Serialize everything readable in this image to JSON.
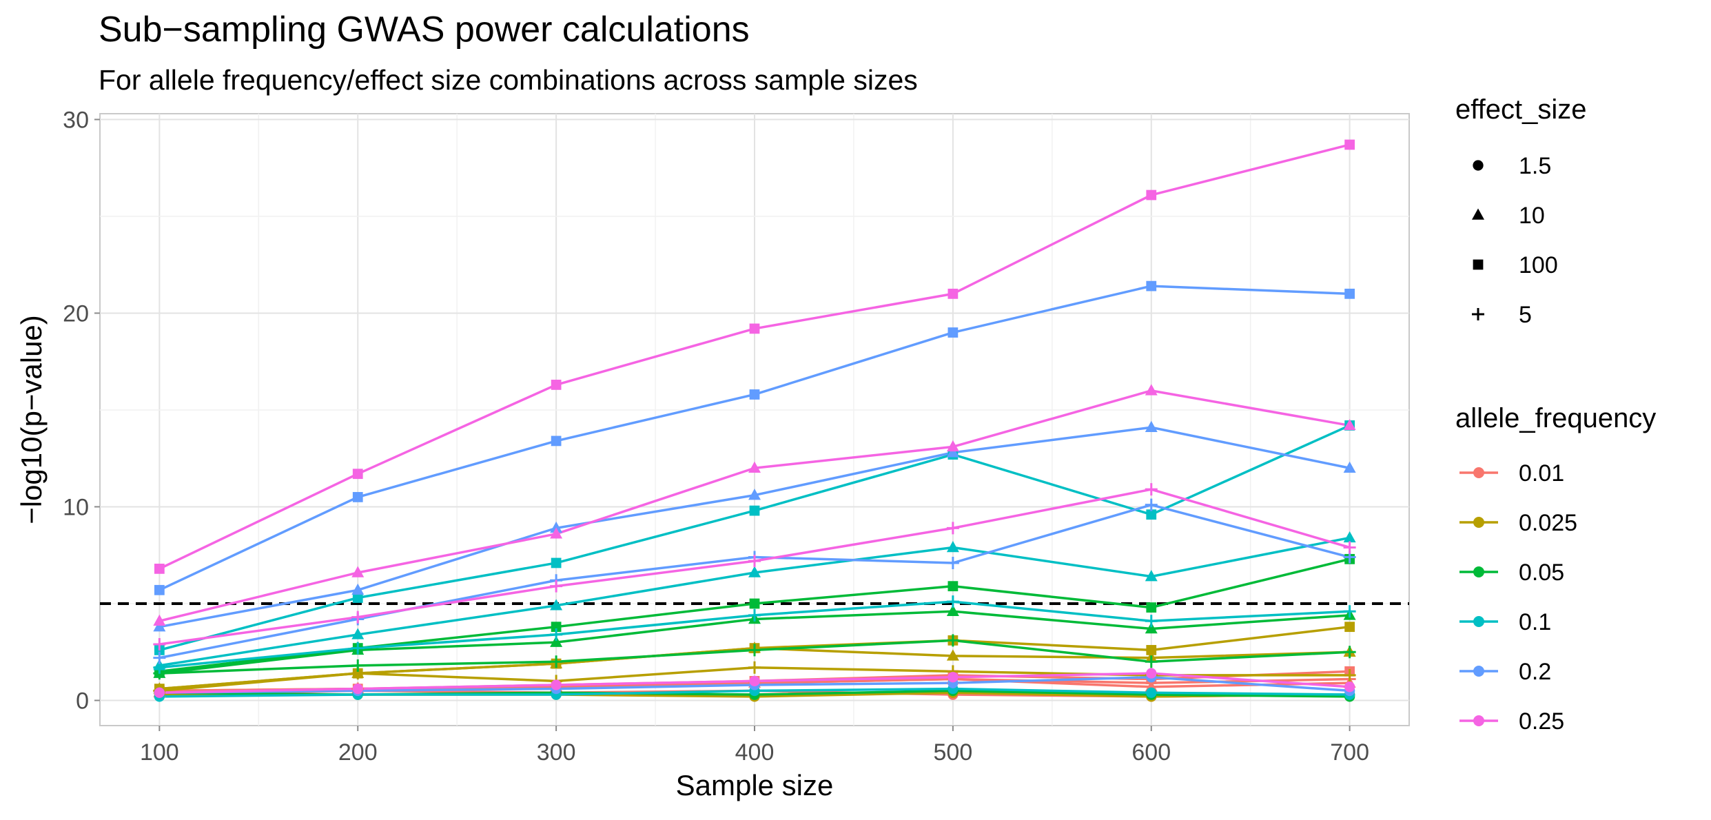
{
  "chart_data": {
    "type": "line",
    "title": "Sub−sampling GWAS power calculations",
    "subtitle": "For allele frequency/effect size combinations across sample sizes",
    "xlabel": "Sample size",
    "ylabel": "−log10(p−value)",
    "x": [
      100,
      200,
      300,
      400,
      500,
      600,
      700
    ],
    "x_ticks": [
      "100",
      "200",
      "300",
      "400",
      "500",
      "600",
      "700"
    ],
    "y_ticks": [
      "0",
      "10",
      "20",
      "30"
    ],
    "xlim": [
      70,
      730
    ],
    "ylim": [
      -1.3,
      30.3
    ],
    "grid": true,
    "threshold_line": {
      "y": 5,
      "style": "dashed",
      "color": "#000000"
    },
    "legend_placement": "right",
    "legend_shape": {
      "title": "effect_size",
      "entries": [
        {
          "label": "1.5",
          "shape": "circle"
        },
        {
          "label": "10",
          "shape": "triangle"
        },
        {
          "label": "100",
          "shape": "square"
        },
        {
          "label": "5",
          "shape": "plus"
        }
      ]
    },
    "legend_color": {
      "title": "allele_frequency",
      "entries": [
        {
          "label": "0.01",
          "color": "#F8766D"
        },
        {
          "label": "0.025",
          "color": "#B79F00"
        },
        {
          "label": "0.05",
          "color": "#00BA38"
        },
        {
          "label": "0.1",
          "color": "#00BFC4"
        },
        {
          "label": "0.2",
          "color": "#619CFF"
        },
        {
          "label": "0.25",
          "color": "#F564E3"
        }
      ]
    },
    "series": [
      {
        "allele_frequency": "0.01",
        "effect_size": "1.5",
        "color": "#F8766D",
        "shape": "circle",
        "values": [
          0.3,
          0.5,
          0.4,
          0.5,
          0.3,
          0.2,
          0.3
        ]
      },
      {
        "allele_frequency": "0.01",
        "effect_size": "10",
        "color": "#F8766D",
        "shape": "triangle",
        "values": [
          0.4,
          0.6,
          0.7,
          0.9,
          1.1,
          0.7,
          0.9
        ]
      },
      {
        "allele_frequency": "0.01",
        "effect_size": "100",
        "color": "#F8766D",
        "shape": "square",
        "values": [
          0.5,
          0.6,
          0.8,
          1.0,
          1.3,
          1.1,
          1.5
        ]
      },
      {
        "allele_frequency": "0.01",
        "effect_size": "5",
        "color": "#F8766D",
        "shape": "plus",
        "values": [
          0.5,
          0.6,
          0.7,
          0.9,
          1.1,
          0.9,
          1.1
        ]
      },
      {
        "allele_frequency": "0.025",
        "effect_size": "1.5",
        "color": "#B79F00",
        "shape": "circle",
        "values": [
          0.3,
          0.3,
          0.3,
          0.2,
          0.4,
          0.2,
          0.3
        ]
      },
      {
        "allele_frequency": "0.025",
        "effect_size": "10",
        "color": "#B79F00",
        "shape": "triangle",
        "values": [
          0.6,
          1.4,
          1.9,
          2.7,
          2.3,
          2.2,
          2.5
        ]
      },
      {
        "allele_frequency": "0.025",
        "effect_size": "100",
        "color": "#B79F00",
        "shape": "square",
        "values": [
          0.6,
          1.4,
          1.9,
          2.7,
          3.1,
          2.6,
          3.8
        ]
      },
      {
        "allele_frequency": "0.025",
        "effect_size": "5",
        "color": "#B79F00",
        "shape": "plus",
        "values": [
          0.5,
          1.4,
          1.0,
          1.7,
          1.5,
          1.3,
          1.3
        ]
      },
      {
        "allele_frequency": "0.05",
        "effect_size": "1.5",
        "color": "#00BA38",
        "shape": "circle",
        "values": [
          0.4,
          0.3,
          0.4,
          0.3,
          0.5,
          0.3,
          0.2
        ]
      },
      {
        "allele_frequency": "0.05",
        "effect_size": "10",
        "color": "#00BA38",
        "shape": "triangle",
        "values": [
          1.4,
          2.6,
          3.0,
          4.2,
          4.6,
          3.7,
          4.4
        ]
      },
      {
        "allele_frequency": "0.05",
        "effect_size": "100",
        "color": "#00BA38",
        "shape": "square",
        "values": [
          1.5,
          2.7,
          3.8,
          5.0,
          5.9,
          4.8,
          7.3
        ]
      },
      {
        "allele_frequency": "0.05",
        "effect_size": "5",
        "color": "#00BA38",
        "shape": "plus",
        "values": [
          1.4,
          1.8,
          2.0,
          2.6,
          3.1,
          2.0,
          2.5
        ]
      },
      {
        "allele_frequency": "0.1",
        "effect_size": "1.5",
        "color": "#00BFC4",
        "shape": "circle",
        "values": [
          0.2,
          0.3,
          0.3,
          0.5,
          0.6,
          0.4,
          0.3
        ]
      },
      {
        "allele_frequency": "0.1",
        "effect_size": "10",
        "color": "#00BFC4",
        "shape": "triangle",
        "values": [
          1.8,
          3.4,
          4.9,
          6.6,
          7.9,
          6.4,
          8.4
        ]
      },
      {
        "allele_frequency": "0.1",
        "effect_size": "100",
        "color": "#00BFC4",
        "shape": "square",
        "values": [
          2.6,
          5.3,
          7.1,
          9.8,
          12.7,
          9.6,
          14.2
        ]
      },
      {
        "allele_frequency": "0.1",
        "effect_size": "5",
        "color": "#00BFC4",
        "shape": "plus",
        "values": [
          1.7,
          2.7,
          3.4,
          4.4,
          5.1,
          4.1,
          4.6
        ]
      },
      {
        "allele_frequency": "0.2",
        "effect_size": "1.5",
        "color": "#619CFF",
        "shape": "circle",
        "values": [
          0.4,
          0.5,
          0.6,
          0.8,
          0.9,
          1.2,
          0.5
        ]
      },
      {
        "allele_frequency": "0.2",
        "effect_size": "10",
        "color": "#619CFF",
        "shape": "triangle",
        "values": [
          3.8,
          5.7,
          8.9,
          10.6,
          12.8,
          14.1,
          12.0
        ]
      },
      {
        "allele_frequency": "0.2",
        "effect_size": "100",
        "color": "#619CFF",
        "shape": "square",
        "values": [
          5.7,
          10.5,
          13.4,
          15.8,
          19.0,
          21.4,
          21.0
        ]
      },
      {
        "allele_frequency": "0.2",
        "effect_size": "5",
        "color": "#619CFF",
        "shape": "plus",
        "values": [
          2.2,
          4.2,
          6.2,
          7.4,
          7.1,
          10.1,
          7.4
        ]
      },
      {
        "allele_frequency": "0.25",
        "effect_size": "1.5",
        "color": "#F564E3",
        "shape": "circle",
        "values": [
          0.4,
          0.6,
          0.8,
          1.0,
          1.2,
          1.4,
          0.7
        ]
      },
      {
        "allele_frequency": "0.25",
        "effect_size": "10",
        "color": "#F564E3",
        "shape": "triangle",
        "values": [
          4.1,
          6.6,
          8.6,
          12.0,
          13.1,
          16.0,
          14.2
        ]
      },
      {
        "allele_frequency": "0.25",
        "effect_size": "100",
        "color": "#F564E3",
        "shape": "square",
        "values": [
          6.8,
          11.7,
          16.3,
          19.2,
          21.0,
          26.1,
          28.7
        ]
      },
      {
        "allele_frequency": "0.25",
        "effect_size": "5",
        "color": "#F564E3",
        "shape": "plus",
        "values": [
          2.9,
          4.3,
          5.9,
          7.2,
          8.9,
          10.9,
          7.9
        ]
      }
    ]
  }
}
